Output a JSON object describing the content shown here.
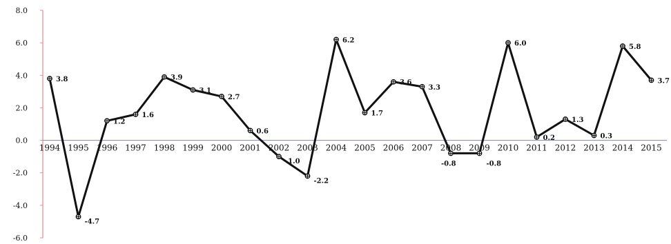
{
  "chart_data": {
    "type": "line",
    "x": [
      "1994",
      "1995",
      "1996",
      "1997",
      "1998",
      "1999",
      "2000",
      "2001",
      "2002",
      "2003",
      "2004",
      "2005",
      "2006",
      "2007",
      "2008",
      "2009",
      "2010",
      "2011",
      "2012",
      "2013",
      "2014",
      "2015"
    ],
    "x_tick_labels": [
      "1994",
      "1995",
      "1996",
      "1997",
      "1998",
      "1999",
      "2000",
      "2001",
      "2002",
      "2003",
      "2004",
      "2005",
      "2006",
      "2007",
      "2008",
      "2009",
      "2010",
      "2011",
      "2012",
      "2013",
      "2014",
      "2015"
    ],
    "values": [
      3.8,
      -4.7,
      1.2,
      1.6,
      3.9,
      3.1,
      2.7,
      0.6,
      -1.0,
      -2.2,
      6.2,
      1.7,
      3.6,
      3.3,
      -0.8,
      -0.8,
      6.0,
      0.2,
      1.3,
      0.3,
      5.8,
      3.7
    ],
    "data_labels": [
      "3.8",
      "-4.7",
      "1.2",
      "1.6",
      "3.9",
      "3.1",
      "2.7",
      "0.6",
      "-1.0",
      "-2.2",
      "6.2",
      "1.7",
      "3.6",
      "3.3",
      "-0.8",
      "-0.8",
      "6.0",
      "0.2",
      "1.3",
      "0.3",
      "5.8",
      "3.7"
    ],
    "y_tick_labels": [
      "8.0",
      "6.0",
      "4.0",
      "2.0",
      "0.0",
      "-2.0",
      "-4.0",
      "-6.0"
    ],
    "y_ticks": [
      8,
      6,
      4,
      2,
      0,
      -2,
      -4,
      -6
    ],
    "ylim": [
      -6,
      8
    ],
    "title": "",
    "xlabel": "",
    "ylabel": "",
    "grid": false,
    "colors": {
      "line": "#111111",
      "y_axis": "#e8898f",
      "zero_line": "#8f8fd8"
    }
  }
}
